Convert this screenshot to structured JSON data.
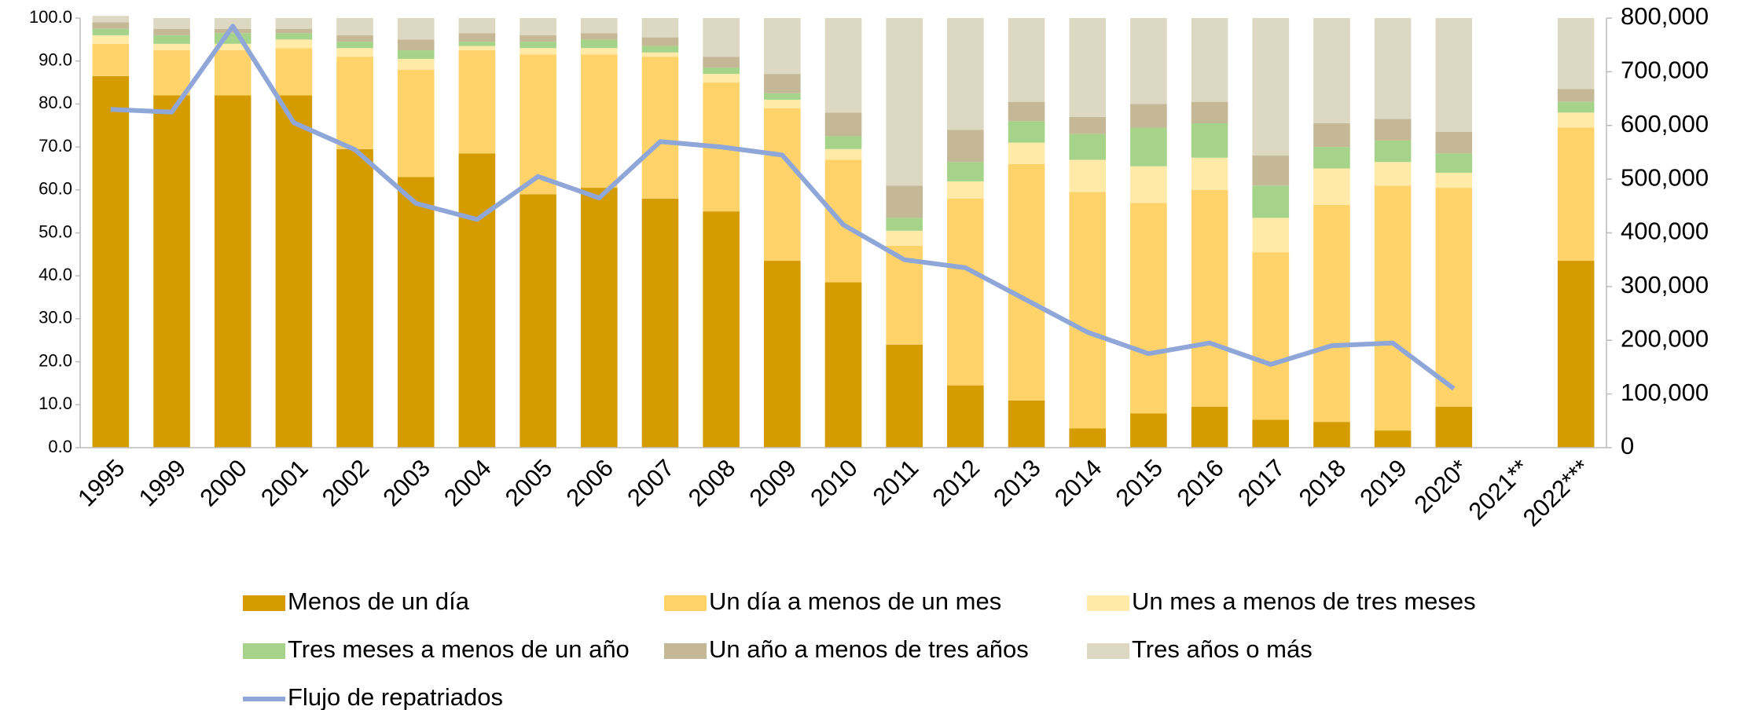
{
  "chart_data": {
    "type": "bar",
    "stacked": true,
    "categories": [
      "1995",
      "1999",
      "2000",
      "2001",
      "2002",
      "2003",
      "2004",
      "2005",
      "2006",
      "2007",
      "2008",
      "2009",
      "2010",
      "2011",
      "2012",
      "2013",
      "2014",
      "2015",
      "2016",
      "2017",
      "2018",
      "2019",
      "2020*",
      "2021**",
      "2022***"
    ],
    "series": [
      {
        "name": "Menos de un día",
        "color": "#d49c00",
        "values": [
          86.5,
          82,
          82,
          82,
          69.5,
          63,
          68.5,
          59,
          60.5,
          58,
          55,
          43.5,
          38.5,
          24,
          14.5,
          11,
          4.5,
          8,
          9.5,
          6.5,
          6,
          4,
          9.5,
          null,
          43.5
        ]
      },
      {
        "name": "Un día a menos de un mes",
        "color": "#ffd36a",
        "values": [
          7.5,
          10.5,
          10.5,
          11,
          21.5,
          25,
          24,
          32.5,
          31,
          33,
          30,
          35.5,
          28.5,
          23,
          43.5,
          55,
          55,
          49,
          50.5,
          39,
          50.5,
          57,
          51,
          null,
          31
        ]
      },
      {
        "name": "Un mes a menos de tres meses",
        "color": "#ffeaa8",
        "values": [
          2,
          1.5,
          1.5,
          2,
          2,
          2.5,
          1,
          1.5,
          1.5,
          1,
          2,
          2,
          2.5,
          3.5,
          4,
          5,
          7.5,
          8.5,
          7.5,
          8,
          8.5,
          5.5,
          3.5,
          null,
          3.5
        ]
      },
      {
        "name": "Tres meses a menos de un año",
        "color": "#a6d38a",
        "values": [
          1.5,
          2,
          2.5,
          1.5,
          1.5,
          2,
          1,
          1.5,
          2,
          1.5,
          1.5,
          1.5,
          3,
          3,
          4.5,
          5,
          6,
          9,
          8,
          7.5,
          5,
          5,
          4.5,
          null,
          2.5
        ]
      },
      {
        "name": "Un año a menos de tres años",
        "color": "#c4b896",
        "values": [
          1.5,
          1.5,
          1,
          1,
          1.5,
          2.5,
          2,
          1.5,
          1.5,
          2,
          2.5,
          4.5,
          5.5,
          7.5,
          7.5,
          4.5,
          4,
          5.5,
          5,
          7,
          5.5,
          5,
          5,
          null,
          3
        ]
      },
      {
        "name": "Tres años o más",
        "color": "#ddd8c2",
        "values": [
          1.5,
          2.5,
          2.5,
          2.5,
          4,
          5,
          3.5,
          4,
          3.5,
          4.5,
          9,
          13,
          22,
          39,
          26,
          19.5,
          23,
          20,
          19.5,
          32,
          24.5,
          23.5,
          26.5,
          null,
          16.5
        ]
      },
      {
        "name": "Flujo de repatriados",
        "type": "line",
        "axis": "y2",
        "color": "#8fa6d8",
        "values": [
          630000,
          625000,
          785000,
          605000,
          555000,
          455000,
          425000,
          505000,
          465000,
          570000,
          560000,
          545000,
          415000,
          350000,
          335000,
          275000,
          215000,
          175000,
          195000,
          155000,
          190000,
          195000,
          110000,
          null,
          null
        ]
      }
    ],
    "ylim": [
      0,
      100
    ],
    "yticks": [
      {
        "value": 0,
        "label": "0.0"
      },
      {
        "value": 10,
        "label": "10.0"
      },
      {
        "value": 20,
        "label": "20.0"
      },
      {
        "value": 30,
        "label": "30.0"
      },
      {
        "value": 40,
        "label": "40.0"
      },
      {
        "value": 50,
        "label": "50.0"
      },
      {
        "value": 60,
        "label": "60.0"
      },
      {
        "value": 70,
        "label": "70.0"
      },
      {
        "value": 80,
        "label": "80.0"
      },
      {
        "value": 90,
        "label": "90.0"
      },
      {
        "value": 100,
        "label": "100.0"
      }
    ],
    "y2lim": [
      0,
      800000
    ],
    "y2ticks": [
      0,
      {
        "value": 100000,
        "label": "100,000"
      },
      {
        "value": 200000,
        "label": "200,000"
      },
      {
        "value": 300000,
        "label": "300,000"
      },
      {
        "value": 400000,
        "label": "400,000"
      },
      {
        "value": 500000,
        "label": "500,000"
      },
      {
        "value": 600000,
        "label": "600,000"
      },
      {
        "value": 700000,
        "label": "700,000"
      },
      {
        "value": 800000,
        "label": "800,000"
      }
    ],
    "grid": false,
    "legend": "bottom"
  }
}
